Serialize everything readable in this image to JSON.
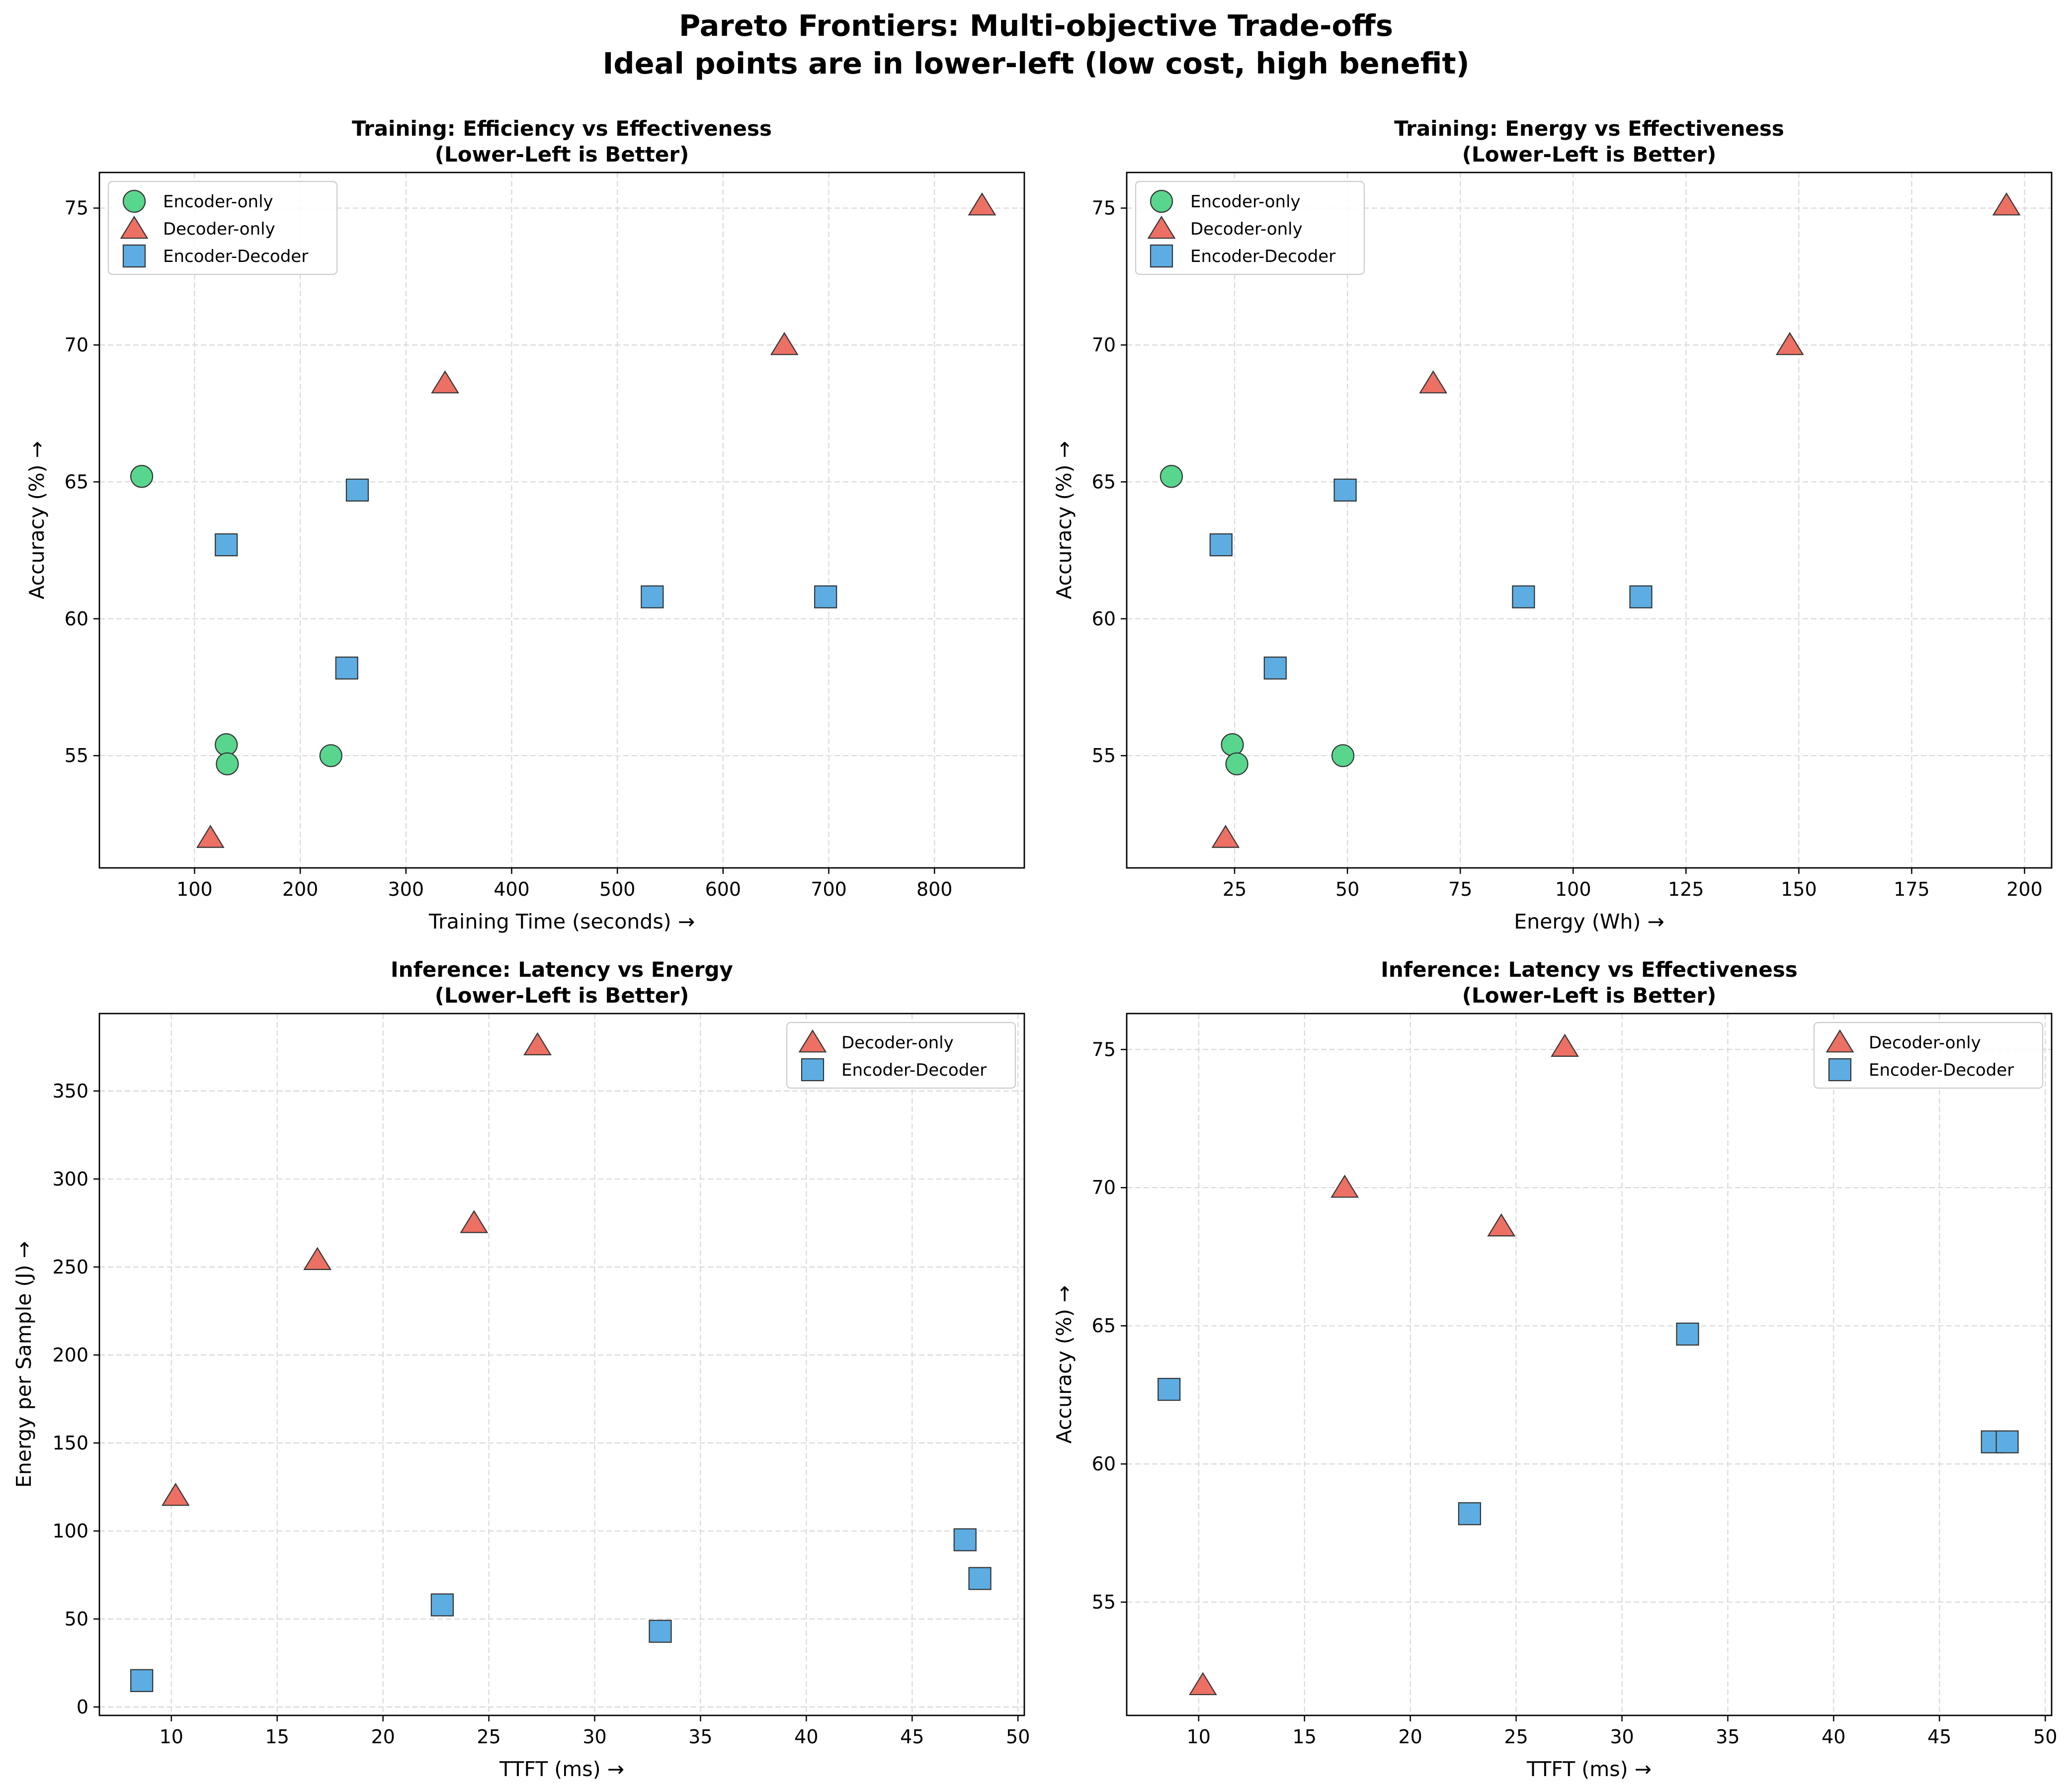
{
  "figure": {
    "title_line1": "Pareto Frontiers: Multi-objective Trade-offs",
    "title_line2": "Ideal points are in lower-left (low cost, high benefit)"
  },
  "colors": {
    "Encoder-only": "#58d68d",
    "Decoder-only": "#ec7063",
    "Encoder-Decoder": "#5dade2",
    "edge": "#333333",
    "grid": "#d9d9d9"
  },
  "chart_data": [
    {
      "type": "scatter",
      "title": "Training: Efficiency vs Effectiveness",
      "subtitle": "(Lower-Left is Better)",
      "xlabel": "Training Time (seconds) →",
      "ylabel": "Accuracy (%) →",
      "xlim": [
        10,
        885
      ],
      "ylim": [
        50.9,
        76.3
      ],
      "xticks": [
        100,
        200,
        300,
        400,
        500,
        600,
        700,
        800
      ],
      "yticks": [
        55,
        60,
        65,
        70,
        75
      ],
      "legend": "upper-left",
      "series": [
        {
          "name": "Encoder-only",
          "marker": "circle",
          "points": [
            [
              50,
              65.2
            ],
            [
              130,
              55.4
            ],
            [
              131,
              54.7
            ],
            [
              229,
              55.0
            ]
          ]
        },
        {
          "name": "Decoder-only",
          "marker": "triangle",
          "points": [
            [
              115,
              52.0
            ],
            [
              337,
              68.6
            ],
            [
              658,
              70.0
            ],
            [
              845,
              75.1
            ]
          ]
        },
        {
          "name": "Encoder-Decoder",
          "marker": "square",
          "points": [
            [
              130,
              62.7
            ],
            [
              254,
              64.7
            ],
            [
              244,
              58.2
            ],
            [
              533,
              60.8
            ],
            [
              697,
              60.8
            ]
          ]
        }
      ]
    },
    {
      "type": "scatter",
      "title": "Training: Energy vs Effectiveness",
      "subtitle": "(Lower-Left is Better)",
      "xlabel": "Energy (Wh) →",
      "ylabel": "Accuracy (%) →",
      "xlim": [
        1.1,
        206.0
      ],
      "ylim": [
        50.9,
        76.3
      ],
      "xticks": [
        25,
        50,
        75,
        100,
        125,
        150,
        175,
        200
      ],
      "yticks": [
        55,
        60,
        65,
        70,
        75
      ],
      "legend": "upper-left",
      "series": [
        {
          "name": "Encoder-only",
          "marker": "circle",
          "points": [
            [
              11,
              65.2
            ],
            [
              24.5,
              55.4
            ],
            [
              25.5,
              54.7
            ],
            [
              49,
              55.0
            ]
          ]
        },
        {
          "name": "Decoder-only",
          "marker": "triangle",
          "points": [
            [
              23,
              52.0
            ],
            [
              69,
              68.6
            ],
            [
              148,
              70.0
            ],
            [
              196,
              75.1
            ]
          ]
        },
        {
          "name": "Encoder-Decoder",
          "marker": "square",
          "points": [
            [
              22,
              62.7
            ],
            [
              49.5,
              64.7
            ],
            [
              34,
              58.2
            ],
            [
              89,
              60.8
            ],
            [
              115,
              60.8
            ]
          ]
        }
      ]
    },
    {
      "type": "scatter",
      "title": "Inference: Latency vs Energy",
      "subtitle": "(Lower-Left is Better)",
      "xlabel": "TTFT (ms) →",
      "ylabel": "Energy per Sample (J) →",
      "xlim": [
        6.6,
        50.3
      ],
      "ylim": [
        -4.8,
        394
      ],
      "xticks": [
        10,
        15,
        20,
        25,
        30,
        35,
        40,
        45,
        50
      ],
      "yticks": [
        0,
        50,
        100,
        150,
        200,
        250,
        300,
        350
      ],
      "legend": "upper-right",
      "series": [
        {
          "name": "Decoder-only",
          "marker": "triangle",
          "points": [
            [
              10.2,
              120
            ],
            [
              16.9,
              254
            ],
            [
              24.3,
              275
            ],
            [
              27.3,
              376
            ]
          ]
        },
        {
          "name": "Encoder-Decoder",
          "marker": "square",
          "points": [
            [
              8.6,
              15
            ],
            [
              22.8,
              58
            ],
            [
              33.1,
              43
            ],
            [
              47.5,
              95
            ],
            [
              48.2,
              73
            ]
          ]
        }
      ]
    },
    {
      "type": "scatter",
      "title": "Inference: Latency vs Effectiveness",
      "subtitle": "(Lower-Left is Better)",
      "xlabel": "TTFT (ms) →",
      "ylabel": "Accuracy (%) →",
      "xlim": [
        6.6,
        50.3
      ],
      "ylim": [
        50.9,
        76.3
      ],
      "xticks": [
        10,
        15,
        20,
        25,
        30,
        35,
        40,
        45,
        50
      ],
      "yticks": [
        55,
        60,
        65,
        70,
        75
      ],
      "legend": "upper-right",
      "series": [
        {
          "name": "Decoder-only",
          "marker": "triangle",
          "points": [
            [
              10.2,
              52.0
            ],
            [
              16.9,
              70.0
            ],
            [
              24.3,
              68.6
            ],
            [
              27.3,
              75.1
            ]
          ]
        },
        {
          "name": "Encoder-Decoder",
          "marker": "square",
          "points": [
            [
              8.6,
              62.7
            ],
            [
              22.8,
              58.2
            ],
            [
              33.1,
              64.7
            ],
            [
              47.5,
              60.8
            ],
            [
              48.2,
              60.8
            ]
          ]
        }
      ]
    }
  ]
}
